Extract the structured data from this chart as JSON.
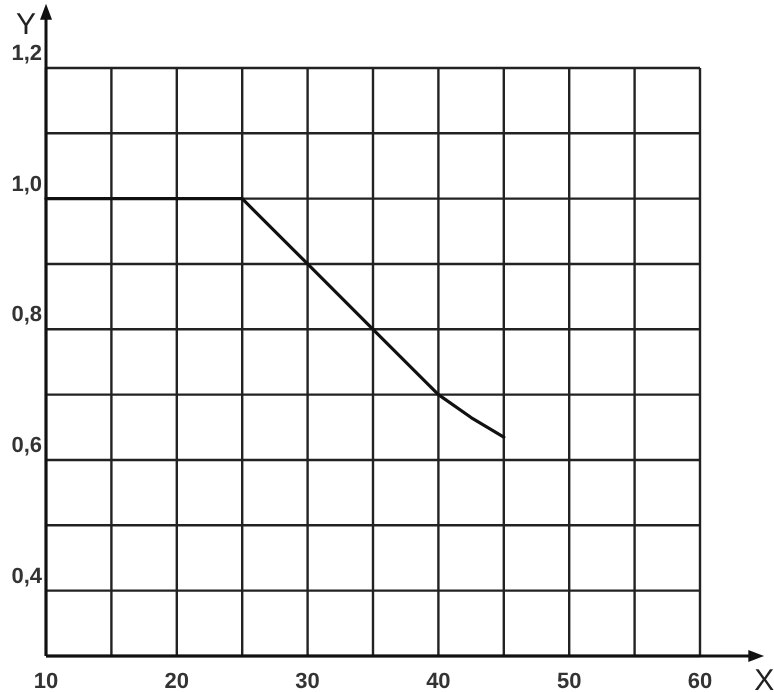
{
  "chart_data": {
    "type": "line",
    "xlabel": "X",
    "ylabel": "Y",
    "x": [
      10,
      25,
      30,
      35,
      40,
      42.5,
      45
    ],
    "series": [
      {
        "color": "#111111",
        "values": [
          1.0,
          1.0,
          0.9,
          0.8,
          0.7,
          0.665,
          0.635
        ]
      }
    ],
    "xlim": [
      10,
      64
    ],
    "ylim": [
      0.3,
      1.28
    ],
    "xticks": [
      10,
      {
        "value": 15,
        "label": null
      },
      20,
      {
        "value": 25,
        "label": null
      },
      30,
      {
        "value": 35,
        "label": null
      },
      40,
      {
        "value": 45,
        "label": null
      },
      50,
      {
        "value": 55,
        "label": null
      },
      60
    ],
    "yticks": [
      {
        "value": 0.3,
        "label": null
      },
      {
        "value": 0.4,
        "label": "0,4"
      },
      {
        "value": 0.5,
        "label": null
      },
      {
        "value": 0.6,
        "label": "0,6"
      },
      {
        "value": 0.7,
        "label": null
      },
      {
        "value": 0.8,
        "label": "0,8"
      },
      {
        "value": 0.9,
        "label": null
      },
      {
        "value": 1.0,
        "label": "1,0"
      },
      {
        "value": 1.1,
        "label": null
      },
      {
        "value": 1.2,
        "label": "1,2"
      }
    ],
    "grid": true,
    "marker": "none",
    "line_style": "solid"
  }
}
